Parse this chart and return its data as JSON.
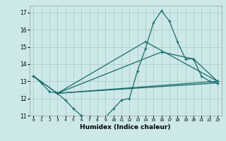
{
  "title": "",
  "xlabel": "Humidex (Indice chaleur)",
  "xlim": [
    -0.5,
    23.5
  ],
  "ylim": [
    11,
    17.4
  ],
  "yticks": [
    11,
    12,
    13,
    14,
    15,
    16,
    17
  ],
  "xticks": [
    0,
    1,
    2,
    3,
    4,
    5,
    6,
    7,
    8,
    9,
    10,
    11,
    12,
    13,
    14,
    15,
    16,
    17,
    18,
    19,
    20,
    21,
    22,
    23
  ],
  "bg_color": "#cce8e8",
  "grid_color": "#b0cccc",
  "line_color": "#1a6b6b",
  "lines": [
    {
      "x": [
        0,
        1,
        2,
        3,
        4,
        5,
        6,
        7,
        8,
        9,
        10,
        11,
        12,
        13,
        14,
        15,
        16,
        17,
        18,
        19,
        20,
        21,
        22,
        23
      ],
      "y": [
        13.3,
        12.9,
        12.4,
        12.3,
        11.9,
        11.4,
        11.0,
        10.9,
        10.9,
        10.9,
        11.4,
        11.9,
        12.0,
        13.6,
        14.9,
        16.4,
        17.1,
        16.5,
        15.3,
        14.3,
        14.3,
        13.3,
        13.0,
        12.9
      ]
    },
    {
      "x": [
        0,
        3,
        23
      ],
      "y": [
        13.3,
        12.3,
        12.9
      ]
    },
    {
      "x": [
        0,
        3,
        23
      ],
      "y": [
        13.3,
        12.3,
        13.0
      ]
    },
    {
      "x": [
        3,
        14,
        23
      ],
      "y": [
        12.3,
        15.3,
        13.0
      ]
    },
    {
      "x": [
        3,
        16,
        20,
        23
      ],
      "y": [
        12.3,
        14.7,
        14.3,
        13.0
      ]
    }
  ]
}
